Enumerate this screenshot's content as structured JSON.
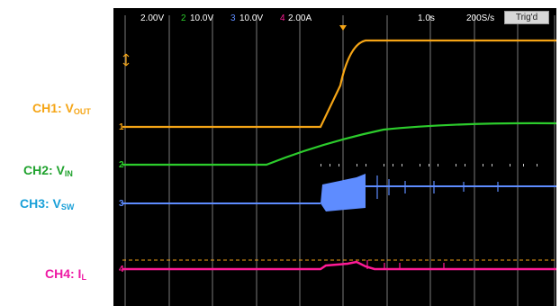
{
  "labels": {
    "ch1": {
      "main": "CH1: V",
      "sub": "OUT",
      "color": "#f5a516"
    },
    "ch2": {
      "main": "CH2: V",
      "sub": "IN",
      "color": "#1fa22d"
    },
    "ch3": {
      "main": "CH3: V",
      "sub": "SW",
      "color": "#1aa0d8"
    },
    "ch4": {
      "main": "CH4: I",
      "sub": "L",
      "color": "#ee1aa4"
    }
  },
  "header": {
    "ch1_scale": "2.00V",
    "ch2_scale": "10.0V",
    "ch3_scale": "10.0V",
    "ch4_scale": "2.00A",
    "timebase": "1.0s",
    "sample_rate": "200S/s",
    "trigger_button": "Trig'd"
  },
  "traces": {
    "ch1_color": "#f5a516",
    "ch2_color": "#2ccc2c",
    "ch3_color": "#5e8cff",
    "ch4_color": "#ff1a96"
  }
}
